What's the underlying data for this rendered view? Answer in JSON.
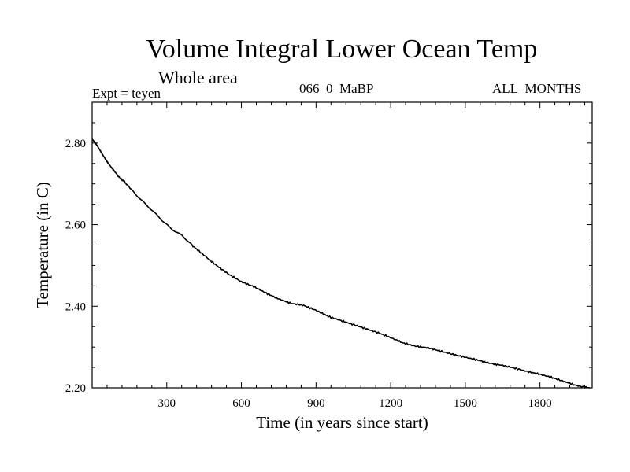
{
  "chart_data": {
    "type": "line",
    "title": "Volume Integral Lower Ocean Temp",
    "subtitle": "Whole area",
    "annotations": {
      "left": "Expt = teyen",
      "center": "066_0_MaBP",
      "right": "ALL_MONTHS"
    },
    "xlabel": "Time (in years since start)",
    "ylabel": "Temperature (in C)",
    "xlim": [
      0,
      2010
    ],
    "ylim": [
      2.2,
      2.9
    ],
    "xticks": [
      300,
      600,
      900,
      1200,
      1500,
      1800
    ],
    "xtick_labels": [
      "300",
      "600",
      "900",
      "1200",
      "1500",
      "1800"
    ],
    "yticks": [
      2.2,
      2.4,
      2.6,
      2.8
    ],
    "ytick_labels": [
      "2.20",
      "2.40",
      "2.60",
      "2.80"
    ],
    "grid": false,
    "series": [
      {
        "name": "Lower Ocean Temp",
        "color": "#000000",
        "x": [
          0,
          20,
          40,
          60,
          80,
          100,
          130,
          160,
          200,
          240,
          280,
          320,
          360,
          400,
          450,
          500,
          550,
          600,
          650,
          700,
          750,
          800,
          850,
          900,
          950,
          1000,
          1050,
          1100,
          1150,
          1200,
          1250,
          1300,
          1350,
          1400,
          1450,
          1500,
          1550,
          1600,
          1650,
          1700,
          1750,
          1800,
          1850,
          1900,
          1950,
          2000
        ],
        "values": [
          2.81,
          2.795,
          2.775,
          2.755,
          2.738,
          2.722,
          2.705,
          2.685,
          2.66,
          2.635,
          2.61,
          2.59,
          2.575,
          2.55,
          2.525,
          2.5,
          2.478,
          2.46,
          2.448,
          2.432,
          2.418,
          2.407,
          2.402,
          2.39,
          2.375,
          2.365,
          2.355,
          2.345,
          2.335,
          2.323,
          2.31,
          2.302,
          2.298,
          2.29,
          2.282,
          2.275,
          2.268,
          2.26,
          2.255,
          2.248,
          2.24,
          2.233,
          2.225,
          2.215,
          2.205,
          2.2
        ]
      }
    ]
  }
}
